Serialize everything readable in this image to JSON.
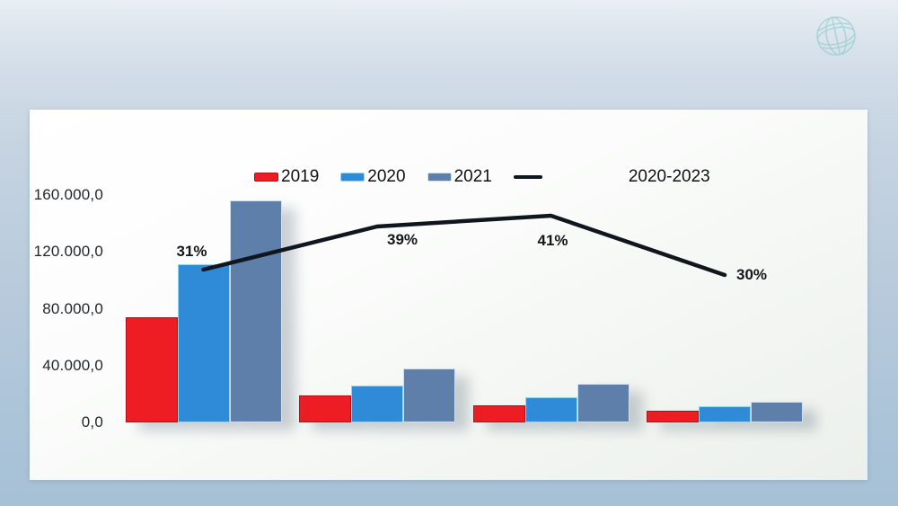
{
  "icons": {
    "watermark": "globe-icon"
  },
  "chart_data": {
    "type": "bar",
    "title": "",
    "xlabel": "",
    "ylabel": "",
    "categories": [
      "",
      "",
      "",
      ""
    ],
    "series": [
      {
        "name": "2019",
        "color": "#ee1c23",
        "border": "#b50d13",
        "values": [
          74000,
          19000,
          12000,
          8000
        ]
      },
      {
        "name": "2020",
        "color": "#2f8ad8",
        "border": "#8fd8f2",
        "values": [
          111000,
          26000,
          18000,
          11500
        ]
      },
      {
        "name": "2021",
        "color": "#5f7fab",
        "border": "#cfe0ed",
        "values": [
          156000,
          38000,
          27000,
          14500
        ]
      }
    ],
    "line_series": {
      "name": "2020-2023",
      "color": "#10161e",
      "values_percent": [
        31,
        39,
        41,
        30
      ],
      "labels": [
        "31%",
        "39%",
        "41%",
        "30%"
      ]
    },
    "y_ticks": [
      "160.000,0",
      "120.000,0",
      "80.000,0",
      "40.000,0",
      "0,0"
    ],
    "y_tick_values": [
      160000,
      120000,
      80000,
      40000,
      0
    ],
    "ylim": [
      0,
      160000
    ],
    "grid": false,
    "legend_position": "top"
  }
}
